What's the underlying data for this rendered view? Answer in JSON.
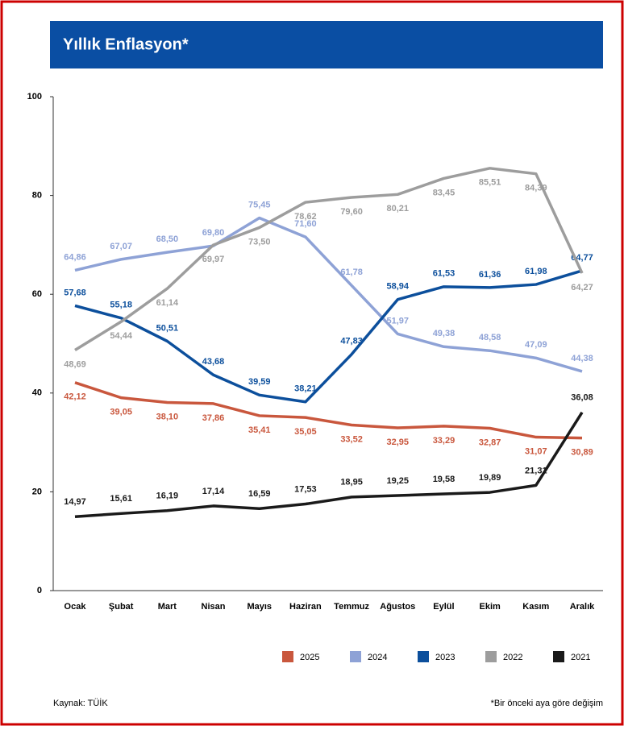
{
  "chart_data": {
    "type": "line",
    "title": "Yıllık Enflasyon*",
    "categories": [
      "Ocak",
      "Şubat",
      "Mart",
      "Nisan",
      "Mayıs",
      "Haziran",
      "Temmuz",
      "Ağustos",
      "Eylül",
      "Ekim",
      "Kasım",
      "Aralık"
    ],
    "series": [
      {
        "name": "2025",
        "color": "#c9573d",
        "values": [
          42.12,
          39.05,
          38.1,
          37.86,
          35.41,
          35.05,
          33.52,
          32.95,
          33.29,
          32.87,
          31.07,
          30.89
        ],
        "value_labels": [
          "42,12",
          "39,05",
          "38,10",
          "37,86",
          "35,41",
          "35,05",
          "33,52",
          "32,95",
          "33,29",
          "32,87",
          "31,07",
          "30,89"
        ]
      },
      {
        "name": "2024",
        "color": "#8ea2d6",
        "values": [
          64.86,
          67.07,
          68.5,
          69.8,
          75.45,
          71.6,
          61.78,
          51.97,
          49.38,
          48.58,
          47.09,
          44.38
        ],
        "value_labels": [
          "64,86",
          "67,07",
          "68,50",
          "69,80",
          "75,45",
          "71,60",
          "61,78",
          "51,97",
          "49,38",
          "48,58",
          "47,09",
          "44,38"
        ]
      },
      {
        "name": "2023",
        "color": "#0c4f9c",
        "values": [
          57.68,
          55.18,
          50.51,
          43.68,
          39.59,
          38.21,
          47.83,
          58.94,
          61.53,
          61.36,
          61.98,
          64.77
        ],
        "value_labels": [
          "57,68",
          "55,18",
          "50,51",
          "43,68",
          "39,59",
          "38,21",
          "47,83",
          "58,94",
          "61,53",
          "61,36",
          "61,98",
          "64,77"
        ]
      },
      {
        "name": "2022",
        "color": "#9d9d9d",
        "values": [
          48.69,
          54.44,
          61.14,
          69.97,
          73.5,
          78.62,
          79.6,
          80.21,
          83.45,
          85.51,
          84.39,
          64.27
        ],
        "value_labels": [
          "48,69",
          "54,44",
          "61,14",
          "69,97",
          "73,50",
          "78,62",
          "79,60",
          "80,21",
          "83,45",
          "85,51",
          "84,39",
          "64,27"
        ]
      },
      {
        "name": "2021",
        "color": "#1a1a1a",
        "values": [
          14.97,
          15.61,
          16.19,
          17.14,
          16.59,
          17.53,
          18.95,
          19.25,
          19.58,
          19.89,
          21.31,
          36.08
        ],
        "value_labels": [
          "14,97",
          "15,61",
          "16,19",
          "17,14",
          "16,59",
          "17,53",
          "18,95",
          "19,25",
          "19,58",
          "19,89",
          "21,31",
          "36,08"
        ]
      }
    ],
    "ylim": [
      0,
      100
    ],
    "yticks": [
      0,
      20,
      40,
      60,
      80,
      100
    ],
    "grid": false,
    "source": "Kaynak: TÜİK",
    "footnote": "*Bir önceki aya göre değişim"
  }
}
